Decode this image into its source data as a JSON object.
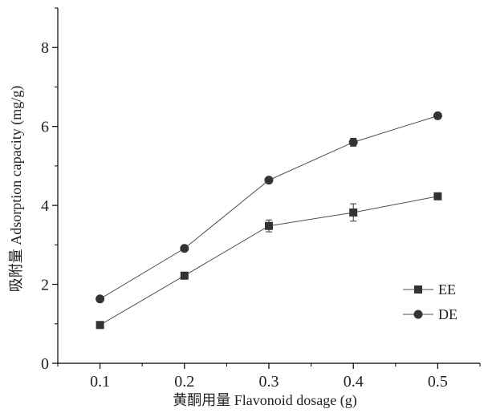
{
  "chart_data": {
    "type": "line",
    "x": [
      0.1,
      0.2,
      0.3,
      0.4,
      0.5
    ],
    "x_tick_labels": [
      "0.1",
      "0.2",
      "0.3",
      "0.4",
      "0.5"
    ],
    "y_tick_labels": [
      "0",
      "2",
      "4",
      "6",
      "8"
    ],
    "xlabel": "黄酮用量 Flavonoid dosage (g)",
    "ylabel": "吸附量 Adsorption capacity (mg/g)",
    "xlim": [
      0.05,
      0.55
    ],
    "ylim": [
      0,
      9
    ],
    "series": [
      {
        "name": "EE",
        "marker": "square",
        "values": [
          0.97,
          2.22,
          3.48,
          3.82,
          4.23
        ],
        "errors": [
          0.05,
          0.05,
          0.15,
          0.22,
          0.05
        ]
      },
      {
        "name": "DE",
        "marker": "circle",
        "values": [
          1.63,
          2.91,
          4.64,
          5.6,
          6.27
        ],
        "errors": [
          0.05,
          0.05,
          0.06,
          0.1,
          0.05
        ]
      }
    ],
    "legend_position": "lower-right",
    "grid": false,
    "colors": {
      "line": "#4d4d4d",
      "marker": "#333333",
      "axis": "#000000"
    }
  }
}
